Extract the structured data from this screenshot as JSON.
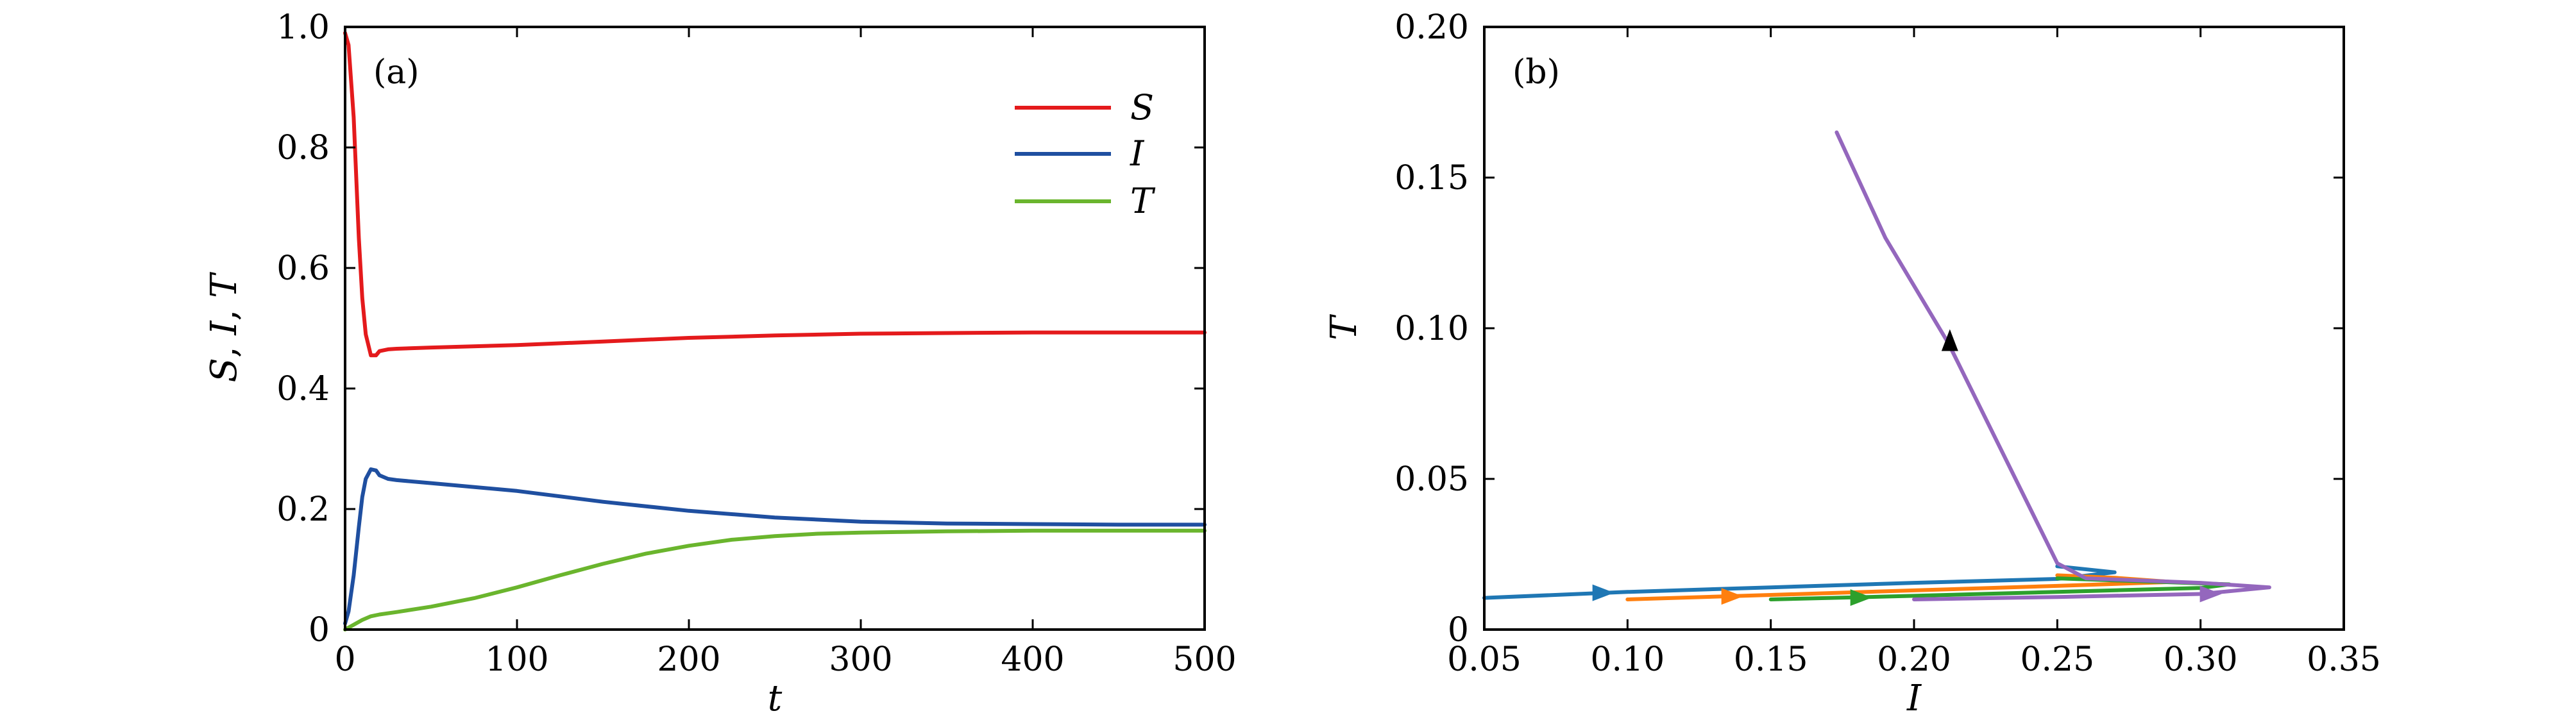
{
  "chart_data": [
    {
      "panel": "(a)",
      "type": "line",
      "xlabel": "t",
      "ylabel_parts": [
        "S",
        ", ",
        "I",
        ", ",
        "T"
      ],
      "xlim": [
        0,
        500
      ],
      "ylim": [
        0,
        1.0
      ],
      "xticks": [
        0,
        100,
        200,
        300,
        400,
        500
      ],
      "xtick_labels": [
        "0",
        "100",
        "200",
        "300",
        "400",
        "500"
      ],
      "yticks": [
        0,
        0.2,
        0.4,
        0.6,
        0.8,
        1.0
      ],
      "ytick_labels": [
        "0",
        "0.2",
        "0.4",
        "0.6",
        "0.8",
        "1.0"
      ],
      "legend": "top-right",
      "series": [
        {
          "name": "S",
          "color": "#e41a1c",
          "x": [
            0,
            2,
            5,
            8,
            10,
            12,
            15,
            18,
            20,
            25,
            30,
            50,
            100,
            150,
            200,
            250,
            300,
            350,
            400,
            450,
            500
          ],
          "y": [
            0.99,
            0.97,
            0.85,
            0.65,
            0.55,
            0.49,
            0.455,
            0.455,
            0.462,
            0.465,
            0.466,
            0.468,
            0.472,
            0.478,
            0.484,
            0.488,
            0.491,
            0.492,
            0.493,
            0.493,
            0.493
          ]
        },
        {
          "name": "I",
          "color": "#1f4fa0",
          "x": [
            0,
            2,
            5,
            8,
            10,
            12,
            15,
            18,
            20,
            25,
            30,
            50,
            100,
            150,
            200,
            250,
            300,
            350,
            400,
            450,
            500
          ],
          "y": [
            0.01,
            0.03,
            0.09,
            0.17,
            0.22,
            0.25,
            0.266,
            0.264,
            0.256,
            0.25,
            0.248,
            0.243,
            0.23,
            0.212,
            0.197,
            0.186,
            0.179,
            0.176,
            0.175,
            0.174,
            0.174
          ]
        },
        {
          "name": "T",
          "color": "#6ab52d",
          "x": [
            0,
            5,
            10,
            15,
            20,
            30,
            50,
            75,
            100,
            125,
            150,
            175,
            200,
            225,
            250,
            275,
            300,
            325,
            350,
            400,
            450,
            500
          ],
          "y": [
            0.0,
            0.008,
            0.016,
            0.022,
            0.025,
            0.029,
            0.038,
            0.052,
            0.07,
            0.09,
            0.109,
            0.126,
            0.139,
            0.149,
            0.155,
            0.159,
            0.161,
            0.162,
            0.163,
            0.164,
            0.164,
            0.164
          ]
        }
      ]
    },
    {
      "panel": "(b)",
      "type": "line",
      "xlabel": "I",
      "ylabel": "T",
      "xlim": [
        0.05,
        0.35
      ],
      "ylim": [
        0,
        0.2
      ],
      "xticks": [
        0.05,
        0.1,
        0.15,
        0.2,
        0.25,
        0.3,
        0.35
      ],
      "xtick_labels": [
        "0.05",
        "0.10",
        "0.15",
        "0.20",
        "0.25",
        "0.30",
        "0.35"
      ],
      "yticks": [
        0,
        0.05,
        0.1,
        0.15,
        0.2
      ],
      "ytick_labels": [
        "0",
        "0.05",
        "0.10",
        "0.15",
        "0.20"
      ],
      "series": [
        {
          "name": "trajectory-1",
          "color": "#1f77b4",
          "x": [
            0.05,
            0.1,
            0.15,
            0.2,
            0.25,
            0.27,
            0.25
          ],
          "y": [
            0.0105,
            0.0125,
            0.014,
            0.0155,
            0.0168,
            0.019,
            0.021
          ],
          "arrow": {
            "x": 0.09,
            "y": 0.0122
          }
        },
        {
          "name": "trajectory-2",
          "color": "#ff7f0e",
          "x": [
            0.1,
            0.15,
            0.2,
            0.25,
            0.29,
            0.27,
            0.25
          ],
          "y": [
            0.01,
            0.0115,
            0.013,
            0.0145,
            0.0158,
            0.0172,
            0.018
          ],
          "arrow": {
            "x": 0.135,
            "y": 0.011
          }
        },
        {
          "name": "trajectory-3",
          "color": "#2ca02c",
          "x": [
            0.15,
            0.2,
            0.25,
            0.3,
            0.31,
            0.28,
            0.25
          ],
          "y": [
            0.01,
            0.0112,
            0.0125,
            0.0138,
            0.015,
            0.016,
            0.017
          ],
          "arrow": {
            "x": 0.18,
            "y": 0.0106
          }
        },
        {
          "name": "trajectory-4",
          "color": "#9467bd",
          "x": [
            0.2,
            0.25,
            0.3,
            0.324,
            0.3,
            0.26,
            0.25,
            0.212,
            0.19,
            0.173
          ],
          "y": [
            0.01,
            0.0108,
            0.0118,
            0.014,
            0.0155,
            0.017,
            0.022,
            0.095,
            0.13,
            0.165
          ],
          "arrow": {
            "x": 0.302,
            "y": 0.0118
          }
        },
        {
          "name": "trajectory-4-arrow",
          "color": "#000000",
          "x": [],
          "y": [],
          "arrow": {
            "x": 0.2125,
            "y": 0.095,
            "dir": "up"
          }
        }
      ]
    }
  ]
}
